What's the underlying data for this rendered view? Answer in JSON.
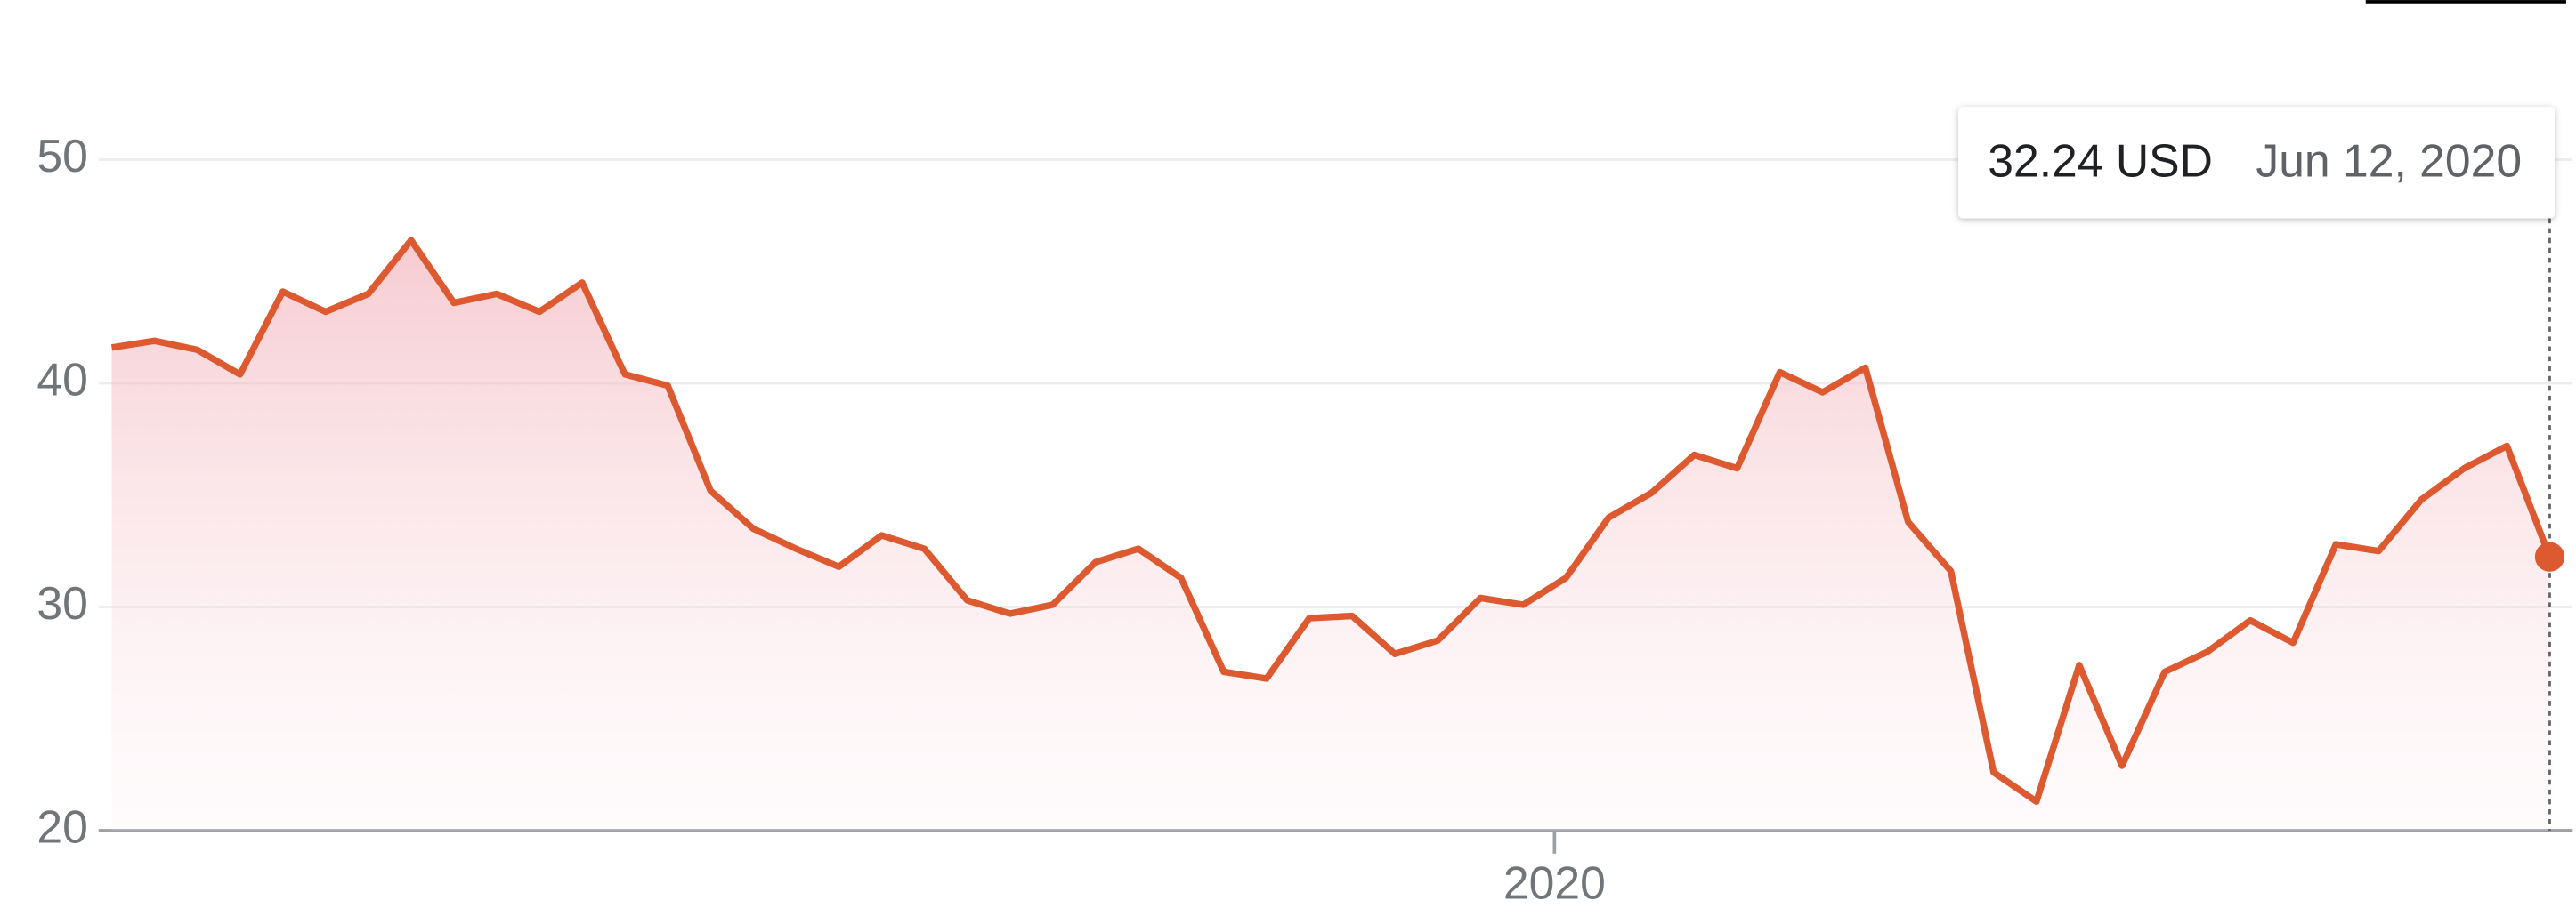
{
  "chart_data": {
    "type": "line",
    "categories": [
      null,
      null,
      null,
      null,
      null,
      null,
      null,
      null,
      null,
      null,
      null,
      null,
      null,
      null,
      null,
      null,
      null,
      null,
      null,
      null,
      null,
      null,
      null,
      null,
      null,
      null,
      null,
      null,
      null,
      null,
      null,
      null,
      null,
      null,
      "2020",
      null,
      null,
      null,
      null,
      null,
      null,
      null,
      null,
      null,
      null,
      null,
      null,
      null,
      null,
      null,
      null,
      null,
      null,
      null,
      null,
      null,
      null,
      null
    ],
    "series": [
      {
        "name": null,
        "color": "#dd5a30",
        "values": [
          41.6,
          41.9,
          41.5,
          40.4,
          44.1,
          43.2,
          44.0,
          46.4,
          43.6,
          44.0,
          43.2,
          44.5,
          40.4,
          39.9,
          35.2,
          33.5,
          32.6,
          31.8,
          33.2,
          32.6,
          30.3,
          29.7,
          30.1,
          32.0,
          32.6,
          31.3,
          27.1,
          26.8,
          29.5,
          29.6,
          27.9,
          28.5,
          30.4,
          30.1,
          31.3,
          34.0,
          35.1,
          36.8,
          36.2,
          40.5,
          39.6,
          40.7,
          33.8,
          31.6,
          22.6,
          21.3,
          27.4,
          22.9,
          27.1,
          28.0,
          29.4,
          28.4,
          32.8,
          32.5,
          34.8,
          36.2,
          37.2,
          32.24
        ]
      }
    ],
    "ylim": [
      20,
      52
    ],
    "yticks": [
      20,
      30,
      40,
      50
    ],
    "grid": true,
    "tooltip": {
      "price": "32.24 USD",
      "date": "Jun 12, 2020"
    }
  }
}
